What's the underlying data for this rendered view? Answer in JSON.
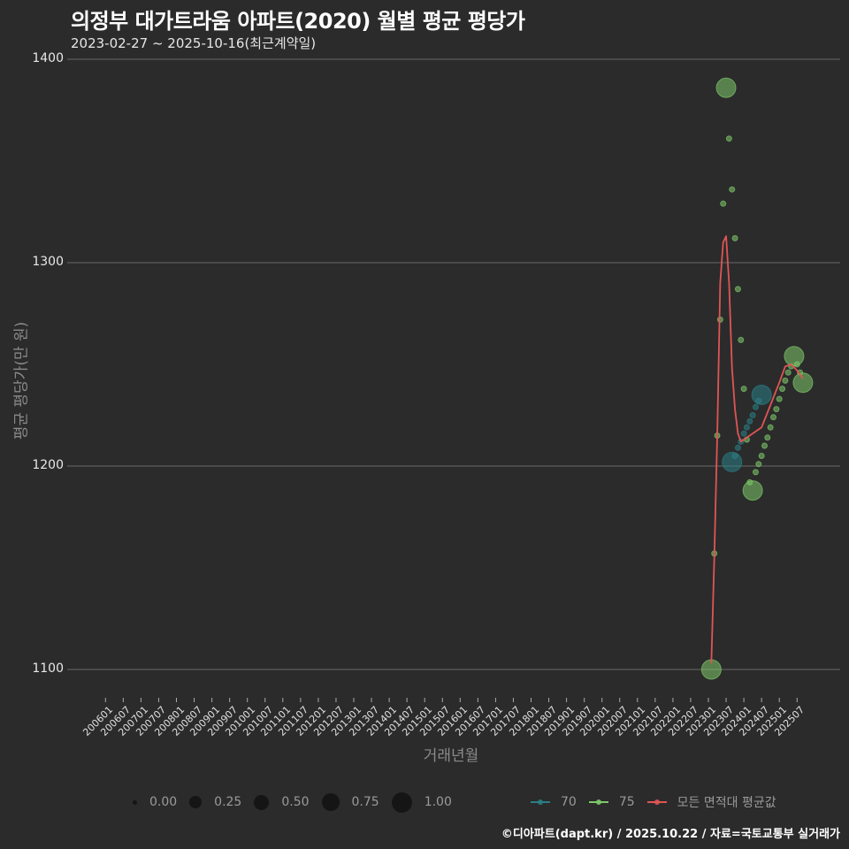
{
  "header": {
    "title": "의정부 대가트라움 아파트(2020) 월별 평균 평당가",
    "subtitle": "2023-02-27 ~ 2025-10-16(최근계약일)"
  },
  "axes": {
    "ylabel": "평균 평당가(만 원)",
    "xlabel": "거래년월",
    "yticks": [
      "1400",
      "1300",
      "1200",
      "1100"
    ],
    "xticks": [
      "200601",
      "200607",
      "200701",
      "200707",
      "200801",
      "200807",
      "200901",
      "200907",
      "201001",
      "201007",
      "201101",
      "201107",
      "201201",
      "201207",
      "201301",
      "201307",
      "201401",
      "201407",
      "201501",
      "201507",
      "201601",
      "201607",
      "201701",
      "201707",
      "201801",
      "201807",
      "201901",
      "201907",
      "202001",
      "202007",
      "202101",
      "202107",
      "202201",
      "202207",
      "202301",
      "202307",
      "202401",
      "202407",
      "202501",
      "202507"
    ]
  },
  "legend": {
    "size_entries": [
      "0.00",
      "0.25",
      "0.50",
      "0.75",
      "1.00"
    ],
    "series_entries": [
      {
        "label": "70",
        "color": "#2a7f86"
      },
      {
        "label": "75",
        "color": "#7ec86a"
      },
      {
        "label": "모든 면적대 평균값",
        "color": "#e05555"
      }
    ]
  },
  "caption": "©디아파트(dapt.kr) / 2025.10.22 / 자료=국토교통부 실거래가",
  "chart_data": {
    "type": "scatter",
    "title": "의정부 대가트라움 아파트(2020) 월별 평균 평당가",
    "subtitle": "2023-02-27 ~ 2025-10-16(최근계약일)",
    "xlabel": "거래년월",
    "ylabel": "평균 평당가(만 원)",
    "ylim": [
      1085,
      1405
    ],
    "xrange": [
      "200601",
      "202510"
    ],
    "grid": "horizontal major",
    "legend_position": "bottom",
    "series": [
      {
        "name": "75",
        "color": "#7ec86a",
        "points": [
          {
            "x": "202302",
            "y": 1100,
            "size": 0.9
          },
          {
            "x": "202303",
            "y": 1157,
            "size": 0.1
          },
          {
            "x": "202304",
            "y": 1215,
            "size": 0.1
          },
          {
            "x": "202305",
            "y": 1272,
            "size": 0.1
          },
          {
            "x": "202306",
            "y": 1329,
            "size": 0.1
          },
          {
            "x": "202307",
            "y": 1386,
            "size": 1.0
          },
          {
            "x": "202308",
            "y": 1361,
            "size": 0.1
          },
          {
            "x": "202309",
            "y": 1336,
            "size": 0.1
          },
          {
            "x": "202310",
            "y": 1312,
            "size": 0.1
          },
          {
            "x": "202311",
            "y": 1287,
            "size": 0.1
          },
          {
            "x": "202312",
            "y": 1262,
            "size": 0.1
          },
          {
            "x": "202401",
            "y": 1238,
            "size": 0.1
          },
          {
            "x": "202402",
            "y": 1213,
            "size": 0.1
          },
          {
            "x": "202403",
            "y": 1192,
            "size": 0.1
          },
          {
            "x": "202404",
            "y": 1188,
            "size": 0.9
          },
          {
            "x": "202405",
            "y": 1197,
            "size": 0.1
          },
          {
            "x": "202406",
            "y": 1201,
            "size": 0.1
          },
          {
            "x": "202407",
            "y": 1205,
            "size": 0.1
          },
          {
            "x": "202408",
            "y": 1210,
            "size": 0.1
          },
          {
            "x": "202409",
            "y": 1214,
            "size": 0.1
          },
          {
            "x": "202410",
            "y": 1219,
            "size": 0.1
          },
          {
            "x": "202411",
            "y": 1224,
            "size": 0.1
          },
          {
            "x": "202412",
            "y": 1228,
            "size": 0.1
          },
          {
            "x": "202501",
            "y": 1233,
            "size": 0.1
          },
          {
            "x": "202502",
            "y": 1238,
            "size": 0.1
          },
          {
            "x": "202503",
            "y": 1242,
            "size": 0.1
          },
          {
            "x": "202504",
            "y": 1246,
            "size": 0.1
          },
          {
            "x": "202505",
            "y": 1249,
            "size": 0.1
          },
          {
            "x": "202506",
            "y": 1254,
            "size": 0.9
          },
          {
            "x": "202507",
            "y": 1250,
            "size": 0.1
          },
          {
            "x": "202508",
            "y": 1246,
            "size": 0.1
          },
          {
            "x": "202509",
            "y": 1241,
            "size": 0.9
          }
        ]
      },
      {
        "name": "70",
        "color": "#2a7f86",
        "points": [
          {
            "x": "202309",
            "y": 1202,
            "size": 0.9
          },
          {
            "x": "202310",
            "y": 1205,
            "size": 0.1
          },
          {
            "x": "202311",
            "y": 1209,
            "size": 0.1
          },
          {
            "x": "202312",
            "y": 1212,
            "size": 0.1
          },
          {
            "x": "202401",
            "y": 1216,
            "size": 0.1
          },
          {
            "x": "202402",
            "y": 1219,
            "size": 0.1
          },
          {
            "x": "202403",
            "y": 1222,
            "size": 0.1
          },
          {
            "x": "202404",
            "y": 1225,
            "size": 0.1
          },
          {
            "x": "202405",
            "y": 1229,
            "size": 0.1
          },
          {
            "x": "202406",
            "y": 1232,
            "size": 0.1
          },
          {
            "x": "202407",
            "y": 1235,
            "size": 0.9
          }
        ]
      },
      {
        "name": "모든 면적대 평균값",
        "type": "line",
        "color": "#e05555",
        "points": [
          {
            "x": "202302",
            "y": 1103
          },
          {
            "x": "202303",
            "y": 1155
          },
          {
            "x": "202304",
            "y": 1215
          },
          {
            "x": "202305",
            "y": 1290
          },
          {
            "x": "202306",
            "y": 1310
          },
          {
            "x": "202307",
            "y": 1313
          },
          {
            "x": "202308",
            "y": 1290
          },
          {
            "x": "202309",
            "y": 1248
          },
          {
            "x": "202310",
            "y": 1228
          },
          {
            "x": "202311",
            "y": 1216
          },
          {
            "x": "202312",
            "y": 1212
          },
          {
            "x": "202407",
            "y": 1219
          },
          {
            "x": "202410",
            "y": 1230
          },
          {
            "x": "202501",
            "y": 1241
          },
          {
            "x": "202503",
            "y": 1249
          },
          {
            "x": "202505",
            "y": 1250
          },
          {
            "x": "202507",
            "y": 1247
          },
          {
            "x": "202509",
            "y": 1243
          }
        ]
      }
    ]
  }
}
